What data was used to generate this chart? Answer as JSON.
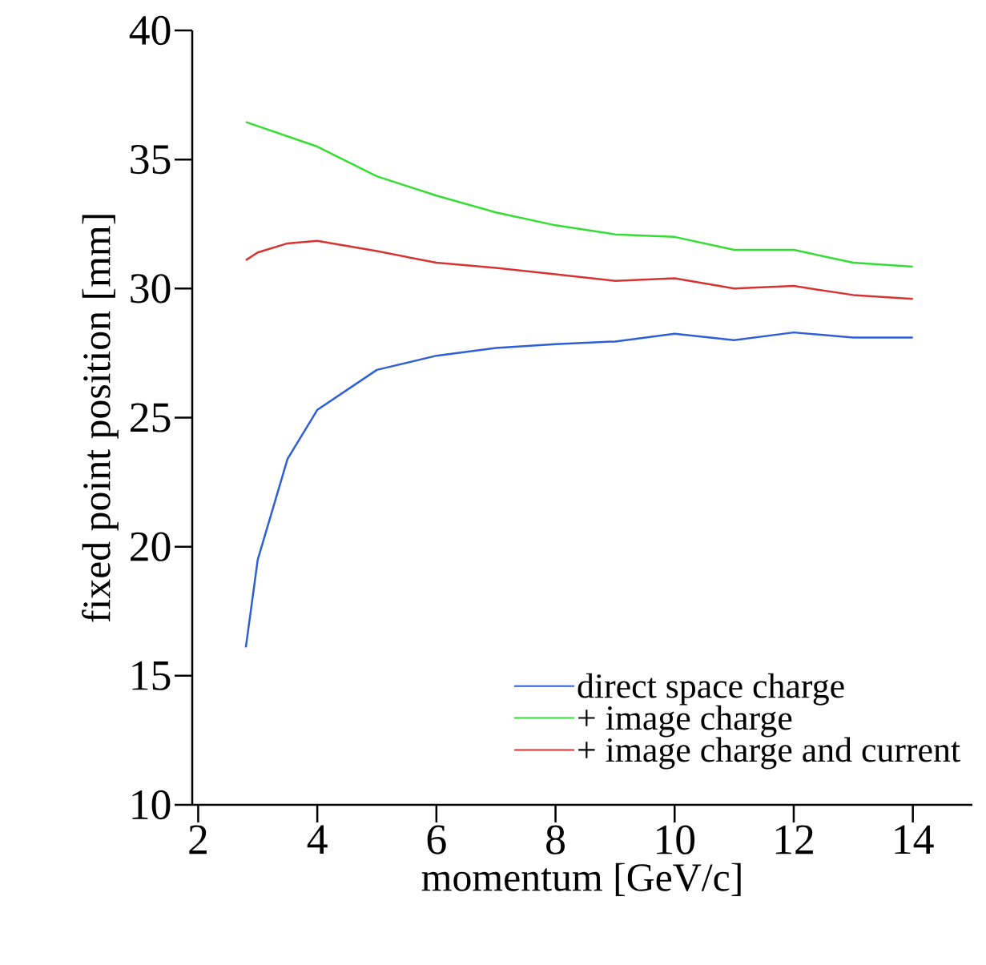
{
  "chart_data": {
    "type": "line",
    "xlabel": "momentum [GeV/c]",
    "ylabel": "fixed point position [mm]",
    "xlim": [
      1.9,
      15
    ],
    "ylim": [
      10,
      40
    ],
    "xticks": [
      2,
      4,
      6,
      8,
      10,
      12,
      14
    ],
    "yticks": [
      10,
      15,
      20,
      25,
      30,
      35,
      40
    ],
    "legend": "bottom right",
    "grid": false,
    "marker": "none",
    "line_style": "solid",
    "series": [
      {
        "name": "direct space charge",
        "color": "#2f5fd6",
        "x": [
          2.8,
          3,
          3.5,
          4,
          5,
          6,
          7,
          8,
          9,
          10,
          11,
          12,
          13,
          14
        ],
        "values": [
          16.1,
          19.5,
          23.4,
          25.3,
          26.85,
          27.4,
          27.7,
          27.85,
          27.95,
          28.25,
          28.0,
          28.3,
          28.1,
          28.1
        ]
      },
      {
        "name": "+ image charge",
        "color": "#33dd33",
        "x": [
          2.8,
          4,
          5,
          6,
          7,
          8,
          9,
          10,
          11,
          12,
          13,
          14
        ],
        "values": [
          36.45,
          35.5,
          34.35,
          33.6,
          32.95,
          32.45,
          32.1,
          32.0,
          31.5,
          31.5,
          31.0,
          30.85
        ]
      },
      {
        "name": "+ image charge and current",
        "color": "#d83333",
        "x": [
          2.8,
          3,
          3.5,
          4,
          5,
          6,
          7,
          8,
          9,
          10,
          11,
          12,
          13,
          14
        ],
        "values": [
          31.1,
          31.4,
          31.75,
          31.85,
          31.45,
          31.0,
          30.8,
          30.55,
          30.3,
          30.4,
          30.0,
          30.1,
          29.75,
          29.6
        ]
      }
    ]
  }
}
